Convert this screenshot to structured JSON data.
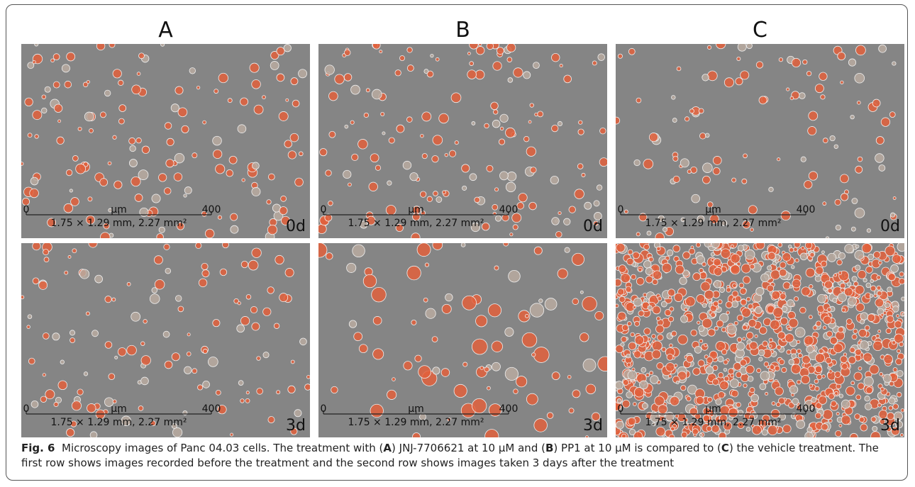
{
  "columns": [
    "A",
    "B",
    "C"
  ],
  "panels": [
    {
      "scale_start": "0",
      "scale_unit": "µm",
      "scale_end": "400",
      "area": "1.75 × 1.29 mm, 2.27 mm²",
      "day": "0d"
    },
    {
      "scale_start": "0",
      "scale_unit": "µm",
      "scale_end": "400",
      "area": "1.75 × 1.29 mm, 2.27 mm²",
      "day": "0d"
    },
    {
      "scale_start": "0",
      "scale_unit": "µm",
      "scale_end": "400",
      "area": "1.75 × 1.29 mm, 2.27 mm²",
      "day": "0d"
    },
    {
      "scale_start": "0",
      "scale_unit": "µm",
      "scale_end": "400",
      "area": "1.75 × 1.29 mm, 2.27 mm²",
      "day": "3d"
    },
    {
      "scale_start": "0",
      "scale_unit": "µm",
      "scale_end": "400",
      "area": "1.75 × 1.29 mm, 2.27 mm²",
      "day": "3d"
    },
    {
      "scale_start": "0",
      "scale_unit": "µm",
      "scale_end": "400",
      "area": "1.75 × 1.29 mm, 2.27 mm²",
      "day": "3d"
    }
  ],
  "caption": [
    {
      "text": "Fig. 6",
      "bold": true
    },
    {
      "text": "  Microscopy images of Panc 04.03 cells. The treatment with (",
      "bold": false
    },
    {
      "text": "A",
      "bold": true
    },
    {
      "text": ") JNJ-7706621 at 10 µM and (",
      "bold": false
    },
    {
      "text": "B",
      "bold": true
    },
    {
      "text": ") PP1 at 10 µM is compared to (",
      "bold": false
    },
    {
      "text": "C",
      "bold": true
    },
    {
      "text": ") the vehicle treatment. The first row shows images recorded before the treatment and the second row shows images taken 3 days after the treatment",
      "bold": false
    }
  ]
}
